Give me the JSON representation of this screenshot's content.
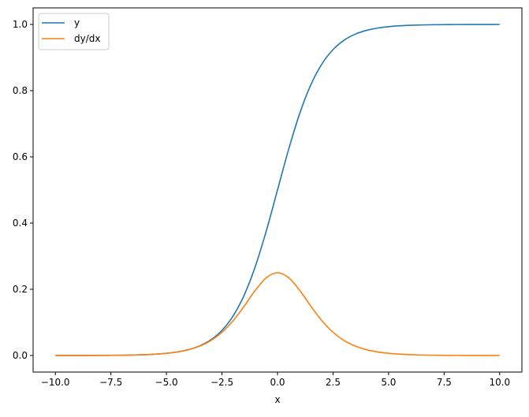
{
  "chart_data": {
    "type": "line",
    "title": "",
    "xlabel": "x",
    "ylabel": "",
    "xlim": [
      -11,
      11
    ],
    "ylim": [
      -0.05,
      1.05
    ],
    "xticks": [
      -10.0,
      -7.5,
      -5.0,
      -2.5,
      0.0,
      2.5,
      5.0,
      7.5,
      10.0
    ],
    "xtick_labels": [
      "−10.0",
      "−7.5",
      "−5.0",
      "−2.5",
      "0.0",
      "2.5",
      "5.0",
      "7.5",
      "10.0"
    ],
    "yticks": [
      0.0,
      0.2,
      0.4,
      0.6,
      0.8,
      1.0
    ],
    "ytick_labels": [
      "0.0",
      "0.2",
      "0.4",
      "0.6",
      "0.8",
      "1.0"
    ],
    "grid": false,
    "legend_position": "top-left",
    "x": [
      -10,
      -9.5,
      -9,
      -8.5,
      -8,
      -7.5,
      -7,
      -6.5,
      -6,
      -5.5,
      -5,
      -4.5,
      -4,
      -3.5,
      -3,
      -2.5,
      -2,
      -1.5,
      -1,
      -0.5,
      0,
      0.5,
      1,
      1.5,
      2,
      2.5,
      3,
      3.5,
      4,
      4.5,
      5,
      5.5,
      6,
      6.5,
      7,
      7.5,
      8,
      8.5,
      9,
      9.5,
      10
    ],
    "series": [
      {
        "name": "y",
        "color": "#1f77b4",
        "values": [
          0.0,
          0.0001,
          0.0001,
          0.0002,
          0.0003,
          0.0006,
          0.0009,
          0.0015,
          0.0025,
          0.0041,
          0.0067,
          0.011,
          0.018,
          0.0293,
          0.0474,
          0.0759,
          0.1192,
          0.1824,
          0.2689,
          0.3775,
          0.5,
          0.6225,
          0.7311,
          0.8176,
          0.8808,
          0.9241,
          0.9526,
          0.9707,
          0.982,
          0.989,
          0.9933,
          0.9959,
          0.9975,
          0.9985,
          0.9991,
          0.9994,
          0.9997,
          0.9998,
          0.9999,
          0.9999,
          1.0
        ]
      },
      {
        "name": "dy/dx",
        "color": "#ff7f0e",
        "values": [
          0.0,
          0.0001,
          0.0001,
          0.0002,
          0.0003,
          0.0006,
          0.0009,
          0.0015,
          0.0025,
          0.0041,
          0.0066,
          0.0109,
          0.0177,
          0.0285,
          0.0452,
          0.0701,
          0.105,
          0.1491,
          0.1966,
          0.235,
          0.25,
          0.235,
          0.1966,
          0.1491,
          0.105,
          0.0701,
          0.0452,
          0.0285,
          0.0177,
          0.0109,
          0.0066,
          0.0041,
          0.0025,
          0.0015,
          0.0009,
          0.0006,
          0.0003,
          0.0002,
          0.0001,
          0.0001,
          0.0
        ]
      }
    ]
  }
}
